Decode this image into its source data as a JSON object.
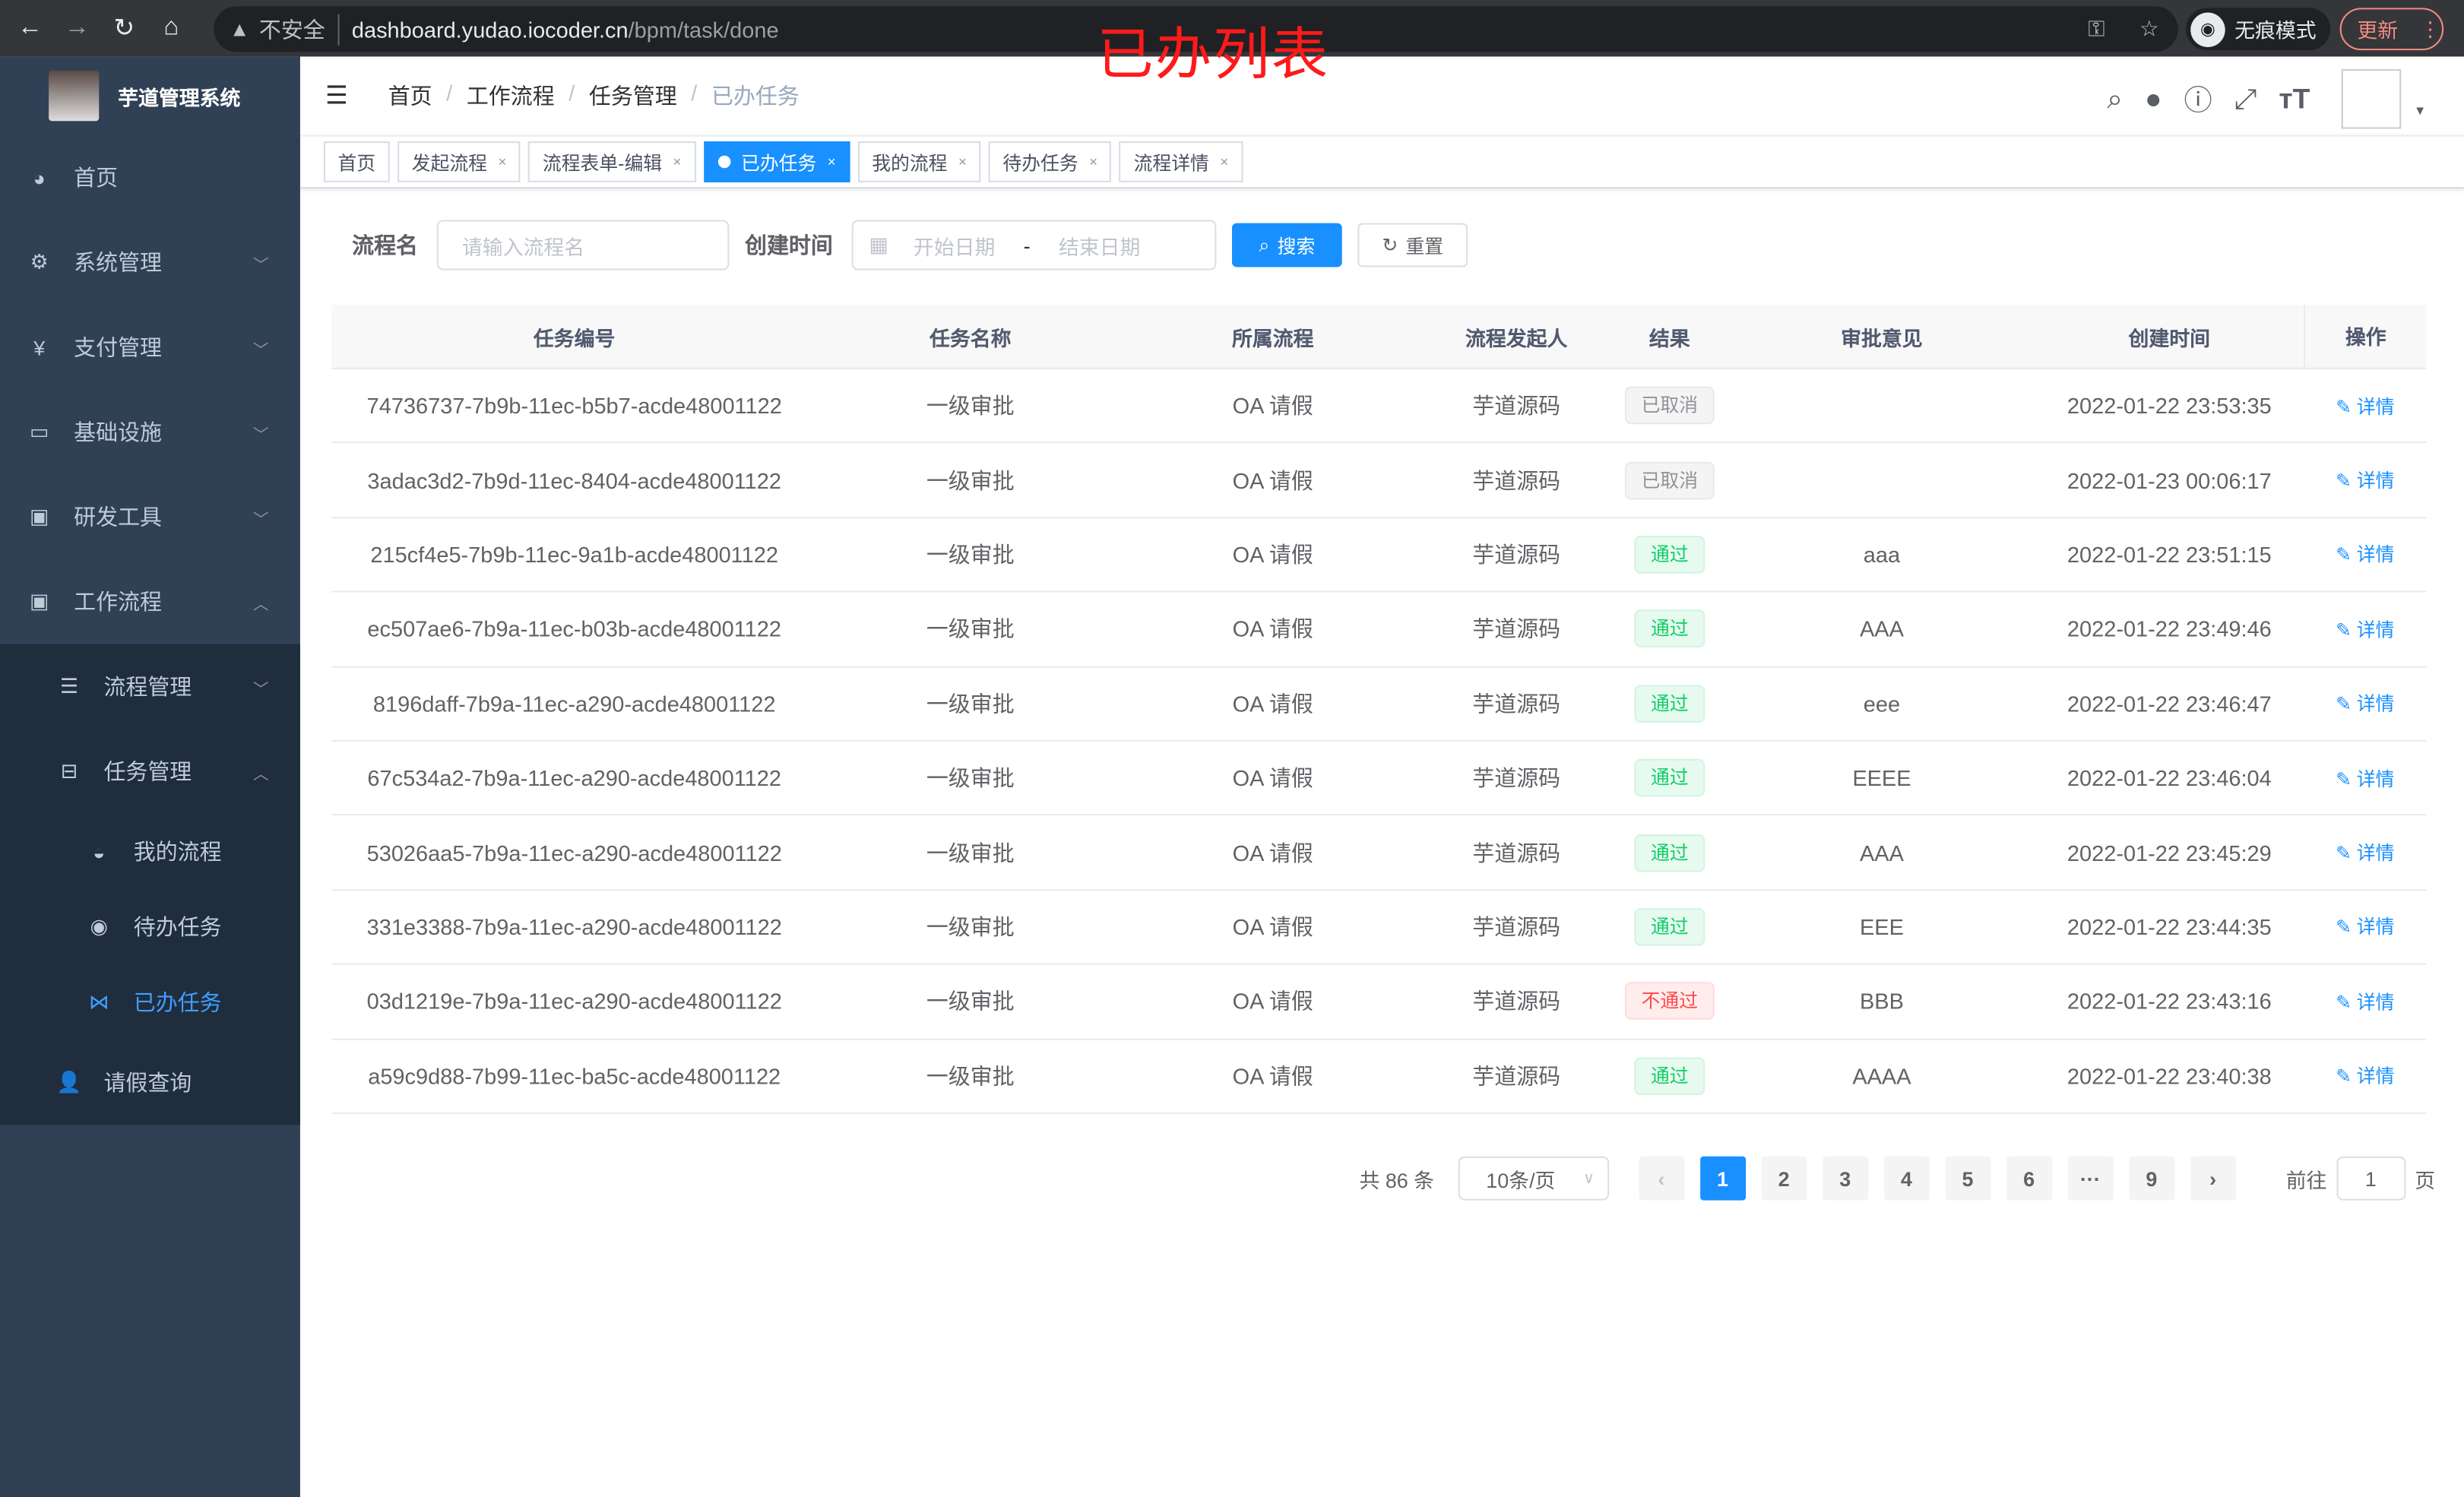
{
  "browser": {
    "insecure": "不安全",
    "host": "dashboard.yudao.iocoder.cn",
    "path": "/bpm/task/done",
    "incognito": "无痕模式",
    "update": "更新"
  },
  "annotation": "已办列表",
  "app": {
    "title": "芋道管理系统"
  },
  "sidebar": {
    "items": [
      {
        "label": "首页",
        "icon": "dashboard-icon"
      },
      {
        "label": "系统管理",
        "icon": "gear-icon"
      },
      {
        "label": "支付管理",
        "icon": "yen-icon"
      },
      {
        "label": "基础设施",
        "icon": "monitor-icon"
      },
      {
        "label": "研发工具",
        "icon": "toolbox-icon"
      },
      {
        "label": "工作流程",
        "icon": "toolbox-icon"
      }
    ],
    "workflow_children": [
      {
        "label": "流程管理"
      },
      {
        "label": "任务管理"
      }
    ],
    "task_children": [
      {
        "label": "我的流程"
      },
      {
        "label": "待办任务"
      },
      {
        "label": "已办任务"
      }
    ],
    "leave": "请假查询"
  },
  "breadcrumb": [
    "首页",
    "工作流程",
    "任务管理",
    "已办任务"
  ],
  "tags": [
    {
      "label": "首页"
    },
    {
      "label": "发起流程"
    },
    {
      "label": "流程表单-编辑"
    },
    {
      "label": "已办任务"
    },
    {
      "label": "我的流程"
    },
    {
      "label": "待办任务"
    },
    {
      "label": "流程详情"
    }
  ],
  "search": {
    "name_label": "流程名",
    "name_placeholder": "请输入流程名",
    "time_label": "创建时间",
    "start_placeholder": "开始日期",
    "sep": "-",
    "end_placeholder": "结束日期",
    "search_btn": "搜索",
    "reset_btn": "重置"
  },
  "table": {
    "headers": [
      "任务编号",
      "任务名称",
      "所属流程",
      "流程发起人",
      "结果",
      "审批意见",
      "创建时间",
      "操作"
    ],
    "rows": [
      [
        "74736737-7b9b-11ec-b5b7-acde48001122",
        "一级审批",
        "OA 请假",
        "芋道源码",
        "已取消",
        "",
        "2022-01-22 23:53:35"
      ],
      [
        "3adac3d2-7b9d-11ec-8404-acde48001122",
        "一级审批",
        "OA 请假",
        "芋道源码",
        "已取消",
        "",
        "2022-01-23 00:06:17"
      ],
      [
        "215cf4e5-7b9b-11ec-9a1b-acde48001122",
        "一级审批",
        "OA 请假",
        "芋道源码",
        "通过",
        "aaa",
        "2022-01-22 23:51:15"
      ],
      [
        "ec507ae6-7b9a-11ec-b03b-acde48001122",
        "一级审批",
        "OA 请假",
        "芋道源码",
        "通过",
        "AAA",
        "2022-01-22 23:49:46"
      ],
      [
        "8196daff-7b9a-11ec-a290-acde48001122",
        "一级审批",
        "OA 请假",
        "芋道源码",
        "通过",
        "eee",
        "2022-01-22 23:46:47"
      ],
      [
        "67c534a2-7b9a-11ec-a290-acde48001122",
        "一级审批",
        "OA 请假",
        "芋道源码",
        "通过",
        "EEEE",
        "2022-01-22 23:46:04"
      ],
      [
        "53026aa5-7b9a-11ec-a290-acde48001122",
        "一级审批",
        "OA 请假",
        "芋道源码",
        "通过",
        "AAA",
        "2022-01-22 23:45:29"
      ],
      [
        "331e3388-7b9a-11ec-a290-acde48001122",
        "一级审批",
        "OA 请假",
        "芋道源码",
        "通过",
        "EEE",
        "2022-01-22 23:44:35"
      ],
      [
        "03d1219e-7b9a-11ec-a290-acde48001122",
        "一级审批",
        "OA 请假",
        "芋道源码",
        "不通过",
        "BBB",
        "2022-01-22 23:43:16"
      ],
      [
        "a59c9d88-7b99-11ec-ba5c-acde48001122",
        "一级审批",
        "OA 请假",
        "芋道源码",
        "通过",
        "AAAA",
        "2022-01-22 23:40:38"
      ]
    ],
    "action": "详情"
  },
  "status_colors": {
    "已取消": "#909399",
    "通过": "#13ce66",
    "不通过": "#ff4949"
  },
  "pagination": {
    "total": "共 86 条",
    "page_size": "10条/页",
    "pages": [
      "1",
      "2",
      "3",
      "4",
      "5",
      "6",
      "···",
      "9"
    ],
    "current": "1",
    "goto_label": "前往",
    "goto_value": "1",
    "page_unit": "页"
  }
}
